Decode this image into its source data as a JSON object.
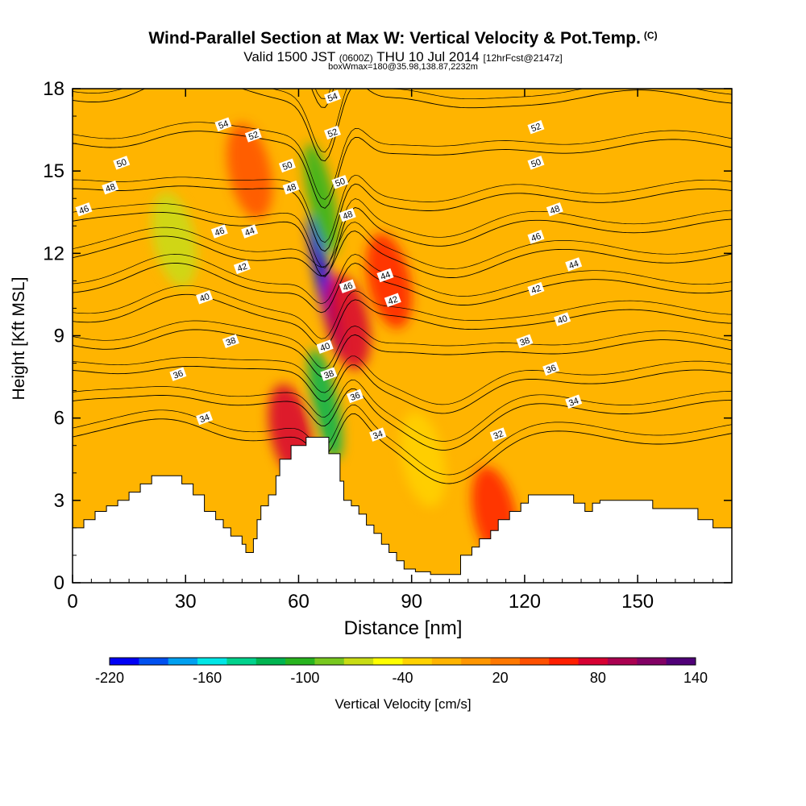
{
  "page": {
    "title": "Wind-Parallel Section at Max W: Vertical Velocity & Pot.Temp.",
    "title_mark": "(C)",
    "subtitle_main_a": "Valid 1500 JST",
    "subtitle_small_a": "(0600Z)",
    "subtitle_main_b": "THU 10 Jul 2014",
    "subtitle_small_b": "[12hrFcst@2147z]",
    "subtitle2": "boxWmax=180@35.98,138.87,2232m"
  },
  "chart_data": {
    "type": "heatmap",
    "title": "Wind-Parallel Section at Max W: Vertical Velocity & Pot.Temp.",
    "xlabel": "Distance [nm]",
    "ylabel": "Height [Kft MSL]",
    "xlim": [
      0,
      175
    ],
    "ylim": [
      0,
      18
    ],
    "x_ticks": [
      "0",
      "30",
      "60",
      "90",
      "120",
      "150"
    ],
    "y_ticks": [
      "0",
      "3",
      "6",
      "9",
      "12",
      "15",
      "18"
    ],
    "colorbar": {
      "label": "Vertical Velocity [cm/s]",
      "ticks": [
        "-220",
        "-160",
        "-100",
        "-40",
        "20",
        "80",
        "140"
      ],
      "range": [
        -220,
        140
      ],
      "colors": [
        "#0000f5",
        "#0050f0",
        "#00a0f0",
        "#00e6e6",
        "#00d28c",
        "#00b450",
        "#28b41e",
        "#78c81e",
        "#c8dc14",
        "#ffff00",
        "#ffd200",
        "#ffb400",
        "#ff9600",
        "#ff7800",
        "#ff5000",
        "#ff1e00",
        "#d70032",
        "#aa0050",
        "#820064",
        "#500078"
      ]
    },
    "velocity_features": [
      {
        "x": 67,
        "y": 10.8,
        "value": -220,
        "note": "downdraft core"
      },
      {
        "x": 67,
        "y": 6.5,
        "value": -130
      },
      {
        "x": 66,
        "y": 14.0,
        "value": -110
      },
      {
        "x": 27,
        "y": 12.5,
        "value": -70
      },
      {
        "x": 73,
        "y": 9.5,
        "value": 80,
        "note": "updraft core"
      },
      {
        "x": 58,
        "y": 5.5,
        "value": 70
      },
      {
        "x": 84,
        "y": 11.0,
        "value": 50
      },
      {
        "x": 112,
        "y": 2.5,
        "value": 60
      },
      {
        "x": 47,
        "y": 15.0,
        "value": 40
      },
      {
        "x": 93,
        "y": 4.5,
        "value": -40
      }
    ],
    "theta_contours": [
      32,
      34,
      36,
      38,
      40,
      42,
      44,
      46,
      48,
      50,
      52,
      54
    ],
    "contour_labels": [
      {
        "text": "54",
        "x": 40,
        "y": 16.7
      },
      {
        "text": "52",
        "x": 48,
        "y": 16.3
      },
      {
        "text": "50",
        "x": 13,
        "y": 15.3
      },
      {
        "text": "48",
        "x": 10,
        "y": 14.4
      },
      {
        "text": "46",
        "x": 3,
        "y": 13.6
      },
      {
        "text": "46",
        "x": 39,
        "y": 12.8
      },
      {
        "text": "44",
        "x": 47,
        "y": 12.8
      },
      {
        "text": "42",
        "x": 45,
        "y": 11.5
      },
      {
        "text": "40",
        "x": 35,
        "y": 10.4
      },
      {
        "text": "38",
        "x": 42,
        "y": 8.8
      },
      {
        "text": "36",
        "x": 28,
        "y": 7.6
      },
      {
        "text": "34",
        "x": 35,
        "y": 6.0
      },
      {
        "text": "54",
        "x": 69,
        "y": 17.7
      },
      {
        "text": "52",
        "x": 69,
        "y": 16.4
      },
      {
        "text": "50",
        "x": 57,
        "y": 15.2
      },
      {
        "text": "48",
        "x": 58,
        "y": 14.4
      },
      {
        "text": "50",
        "x": 71,
        "y": 14.6
      },
      {
        "text": "48",
        "x": 73,
        "y": 13.4
      },
      {
        "text": "46",
        "x": 73,
        "y": 10.8
      },
      {
        "text": "40",
        "x": 67,
        "y": 8.6
      },
      {
        "text": "38",
        "x": 68,
        "y": 7.6
      },
      {
        "text": "36",
        "x": 75,
        "y": 6.8
      },
      {
        "text": "34",
        "x": 81,
        "y": 5.4
      },
      {
        "text": "44",
        "x": 83,
        "y": 11.2
      },
      {
        "text": "42",
        "x": 85,
        "y": 10.3
      },
      {
        "text": "52",
        "x": 123,
        "y": 16.6
      },
      {
        "text": "50",
        "x": 123,
        "y": 15.3
      },
      {
        "text": "48",
        "x": 128,
        "y": 13.6
      },
      {
        "text": "46",
        "x": 123,
        "y": 12.6
      },
      {
        "text": "44",
        "x": 133,
        "y": 11.6
      },
      {
        "text": "42",
        "x": 123,
        "y": 10.7
      },
      {
        "text": "40",
        "x": 130,
        "y": 9.6
      },
      {
        "text": "38",
        "x": 120,
        "y": 8.8
      },
      {
        "text": "36",
        "x": 127,
        "y": 7.8
      },
      {
        "text": "34",
        "x": 133,
        "y": 6.6
      },
      {
        "text": "32",
        "x": 113,
        "y": 5.4
      }
    ],
    "terrain": [
      [
        0,
        2.0
      ],
      [
        3,
        2.0
      ],
      [
        3,
        2.3
      ],
      [
        6,
        2.3
      ],
      [
        6,
        2.6
      ],
      [
        9,
        2.6
      ],
      [
        9,
        2.8
      ],
      [
        12,
        2.8
      ],
      [
        12,
        3.0
      ],
      [
        15,
        3.0
      ],
      [
        15,
        3.3
      ],
      [
        18,
        3.3
      ],
      [
        18,
        3.6
      ],
      [
        21,
        3.6
      ],
      [
        21,
        3.9
      ],
      [
        29,
        3.9
      ],
      [
        29,
        3.6
      ],
      [
        32,
        3.6
      ],
      [
        32,
        3.2
      ],
      [
        35,
        3.2
      ],
      [
        35,
        2.6
      ],
      [
        38,
        2.6
      ],
      [
        38,
        2.3
      ],
      [
        40,
        2.3
      ],
      [
        40,
        2.0
      ],
      [
        42,
        2.0
      ],
      [
        42,
        1.7
      ],
      [
        45,
        1.7
      ],
      [
        45,
        1.4
      ],
      [
        46,
        1.4
      ],
      [
        46,
        1.1
      ],
      [
        48,
        1.1
      ],
      [
        48,
        1.6
      ],
      [
        49,
        1.6
      ],
      [
        49,
        2.3
      ],
      [
        50,
        2.3
      ],
      [
        50,
        2.8
      ],
      [
        52,
        2.8
      ],
      [
        52,
        3.2
      ],
      [
        54,
        3.2
      ],
      [
        54,
        3.9
      ],
      [
        55,
        3.9
      ],
      [
        55,
        4.5
      ],
      [
        58,
        4.5
      ],
      [
        58,
        5.0
      ],
      [
        62,
        5.0
      ],
      [
        62,
        5.3
      ],
      [
        68,
        5.3
      ],
      [
        68,
        4.7
      ],
      [
        71,
        4.7
      ],
      [
        71,
        3.7
      ],
      [
        72,
        3.7
      ],
      [
        72,
        3.0
      ],
      [
        74,
        3.0
      ],
      [
        74,
        2.8
      ],
      [
        76,
        2.8
      ],
      [
        76,
        2.5
      ],
      [
        78,
        2.5
      ],
      [
        78,
        2.1
      ],
      [
        80,
        2.1
      ],
      [
        80,
        1.8
      ],
      [
        82,
        1.8
      ],
      [
        82,
        1.4
      ],
      [
        84,
        1.4
      ],
      [
        84,
        1.1
      ],
      [
        86,
        1.1
      ],
      [
        86,
        0.8
      ],
      [
        88,
        0.8
      ],
      [
        88,
        0.5
      ],
      [
        91,
        0.5
      ],
      [
        91,
        0.4
      ],
      [
        95,
        0.4
      ],
      [
        95,
        0.3
      ],
      [
        103,
        0.3
      ],
      [
        103,
        1.0
      ],
      [
        106,
        1.0
      ],
      [
        106,
        1.3
      ],
      [
        108,
        1.3
      ],
      [
        108,
        1.6
      ],
      [
        111,
        1.6
      ],
      [
        111,
        1.9
      ],
      [
        113,
        1.9
      ],
      [
        113,
        2.3
      ],
      [
        116,
        2.3
      ],
      [
        116,
        2.6
      ],
      [
        119,
        2.6
      ],
      [
        119,
        2.9
      ],
      [
        121,
        2.9
      ],
      [
        121,
        3.2
      ],
      [
        133,
        3.2
      ],
      [
        133,
        2.9
      ],
      [
        136,
        2.9
      ],
      [
        136,
        2.6
      ],
      [
        138,
        2.6
      ],
      [
        138,
        2.9
      ],
      [
        140,
        2.9
      ],
      [
        140,
        3.0
      ],
      [
        154,
        3.0
      ],
      [
        154,
        2.7
      ],
      [
        166,
        2.7
      ],
      [
        166,
        2.3
      ],
      [
        170,
        2.3
      ],
      [
        170,
        2.0
      ],
      [
        175,
        2.0
      ]
    ]
  }
}
